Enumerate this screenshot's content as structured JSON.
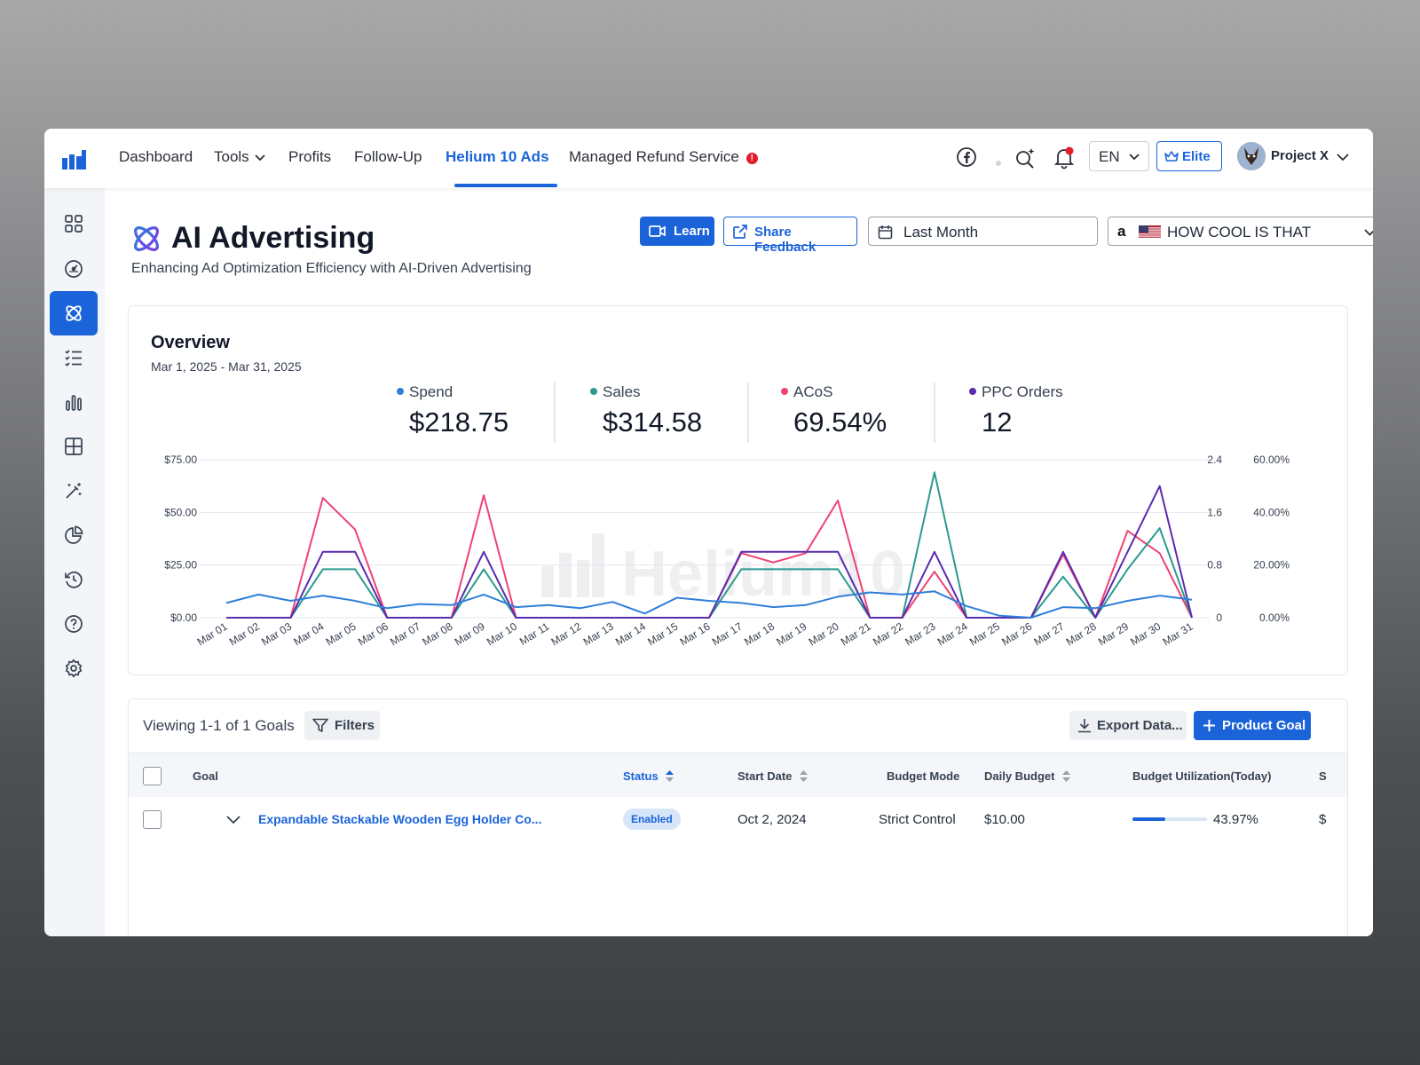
{
  "nav": {
    "items": [
      "Dashboard",
      "Tools",
      "Profits",
      "Follow-Up",
      "Helium 10 Ads",
      "Managed Refund Service"
    ],
    "active": "Helium 10 Ads",
    "alert_glyph": "!"
  },
  "topbar": {
    "language": "EN",
    "plan_label": "Elite",
    "user_name": "Project X",
    "icons": [
      "facebook-icon",
      "ai-search-icon",
      "bell-icon",
      "crown-icon",
      "chevron-down-icon"
    ]
  },
  "sidebar": {
    "icons": [
      "dashboard-grid-icon",
      "speedometer-icon",
      "ai-atom-icon",
      "checklist-icon",
      "bar-chart-icon",
      "table-grid-icon",
      "magic-wand-icon",
      "pie-chart-icon",
      "history-icon",
      "help-icon",
      "settings-icon"
    ],
    "active_index": 2
  },
  "page": {
    "title": "AI Advertising",
    "subtitle": "Enhancing Ad Optimization Efficiency with AI-Driven Advertising",
    "learn_label": "Learn",
    "feedback_label": "Share Feedback",
    "date_range": "Last Month",
    "store_name": "HOW COOL IS THAT"
  },
  "overview": {
    "title": "Overview",
    "date_range": "Mar 1, 2025 - Mar 31, 2025",
    "kpis": [
      {
        "label": "Spend",
        "value": "$218.75",
        "color": "#2f7fd9"
      },
      {
        "label": "Sales",
        "value": "$314.58",
        "color": "#2a9a8e"
      },
      {
        "label": "ACoS",
        "value": "69.54%",
        "color": "#ef4275"
      },
      {
        "label": "PPC Orders",
        "value": "12",
        "color": "#5b2bb0"
      }
    ],
    "watermark": "Helium10"
  },
  "chart_data": {
    "type": "line",
    "x": [
      "Mar 01",
      "Mar 02",
      "Mar 03",
      "Mar 04",
      "Mar 05",
      "Mar 06",
      "Mar 07",
      "Mar 08",
      "Mar 09",
      "Mar 10",
      "Mar 11",
      "Mar 12",
      "Mar 13",
      "Mar 14",
      "Mar 15",
      "Mar 16",
      "Mar 17",
      "Mar 18",
      "Mar 19",
      "Mar 20",
      "Mar 21",
      "Mar 22",
      "Mar 23",
      "Mar 24",
      "Mar 25",
      "Mar 26",
      "Mar 27",
      "Mar 28",
      "Mar 29",
      "Mar 30",
      "Mar 31"
    ],
    "left_axis": {
      "ticks": [
        "$0.00",
        "$25.00",
        "$50.00",
        "$75.00"
      ],
      "range": [
        0,
        75
      ]
    },
    "right_axis_orders": {
      "ticks": [
        "0",
        "0.8",
        "1.6",
        "2.4"
      ],
      "range": [
        0,
        2.4
      ]
    },
    "right_axis_acos": {
      "ticks": [
        "0.00%",
        "20.00%",
        "40.00%",
        "60.00%"
      ],
      "range": [
        0,
        60
      ]
    },
    "series": [
      {
        "name": "Spend",
        "axis": "left",
        "color": "#2f7fd9",
        "values": [
          7,
          11,
          8,
          10.5,
          8,
          4.5,
          6.5,
          6,
          11,
          5,
          6,
          4.5,
          7.5,
          2,
          9.5,
          8,
          7,
          5,
          6,
          10,
          12,
          11,
          12.5,
          5.5,
          1,
          0,
          5,
          4.5,
          8,
          10.5,
          8.5
        ]
      },
      {
        "name": "Sales",
        "axis": "left",
        "color": "#2a9a8e",
        "values": [
          0,
          0,
          0,
          23,
          23,
          0,
          0,
          0,
          23,
          0,
          0,
          0,
          0,
          0,
          0,
          0,
          23,
          23,
          23,
          23,
          0,
          0,
          69,
          0,
          0,
          0,
          19.5,
          0,
          23,
          42.5,
          0
        ]
      },
      {
        "name": "ACoS",
        "axis": "acos",
        "color": "#ef4275",
        "values": [
          0,
          0,
          0,
          45.5,
          33.5,
          0,
          0,
          0,
          46.5,
          0,
          0,
          0,
          0,
          0,
          0,
          0,
          24.5,
          21,
          24.5,
          44.5,
          0,
          0,
          17.5,
          0,
          0,
          0,
          24,
          0,
          33,
          24.5,
          0
        ]
      },
      {
        "name": "PPC Orders",
        "axis": "orders",
        "color": "#5b2bb0",
        "values": [
          0,
          0,
          0,
          1,
          1,
          0,
          0,
          0,
          1,
          0,
          0,
          0,
          0,
          0,
          0,
          0,
          1,
          1,
          1,
          1,
          0,
          0,
          1,
          0,
          0,
          0,
          1,
          0,
          1,
          2,
          0
        ]
      }
    ],
    "grid": true
  },
  "goals": {
    "viewing_text": "Viewing 1-1 of 1 Goals",
    "filters_label": "Filters",
    "export_label": "Export Data...",
    "product_goal_label": "Product Goal",
    "columns": [
      "Goal",
      "Status",
      "Start Date",
      "Budget Mode",
      "Daily Budget",
      "Budget Utilization(Today)",
      "S"
    ],
    "rows": [
      {
        "goal": "Expandable Stackable Wooden Egg Holder Co...",
        "status": "Enabled",
        "start_date": "Oct 2, 2024",
        "budget_mode": "Strict Control",
        "daily_budget": "$10.00",
        "utilization_text": "43.97%",
        "utilization": 0.4397,
        "next_col_fragment": "$"
      }
    ]
  }
}
